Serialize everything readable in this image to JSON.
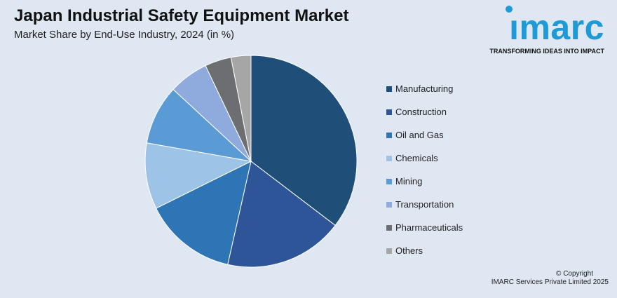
{
  "header": {
    "title": "Japan Industrial Safety Equipment Market",
    "subtitle": "Market Share by End-Use Industry, 2024 (in %)"
  },
  "logo": {
    "word": "ımarc",
    "tagline": "TRANSFORMING IDEAS INTO IMPACT",
    "color": "#1e9ad6"
  },
  "chart_data": {
    "type": "pie",
    "title": "Japan Industrial Safety Equipment Market",
    "subtitle": "Market Share by End-Use Industry, 2024 (in %)",
    "categories": [
      "Manufacturing",
      "Construction",
      "Oil and Gas",
      "Chemicals",
      "Mining",
      "Transportation",
      "Pharmaceuticals",
      "Others"
    ],
    "values": [
      35,
      18,
      14,
      10,
      9,
      6,
      4,
      3
    ],
    "colors": [
      "#1f4e79",
      "#2e5597",
      "#2e75b6",
      "#9dc3e6",
      "#5b9bd5",
      "#8faadc",
      "#6d6e71",
      "#a6a6a6"
    ],
    "start": "top",
    "direction": "clockwise",
    "legend_position": "right"
  },
  "footer": {
    "copyright_line1": "© Copyright",
    "copyright_line2": "IMARC Services Private Limited 2025"
  }
}
